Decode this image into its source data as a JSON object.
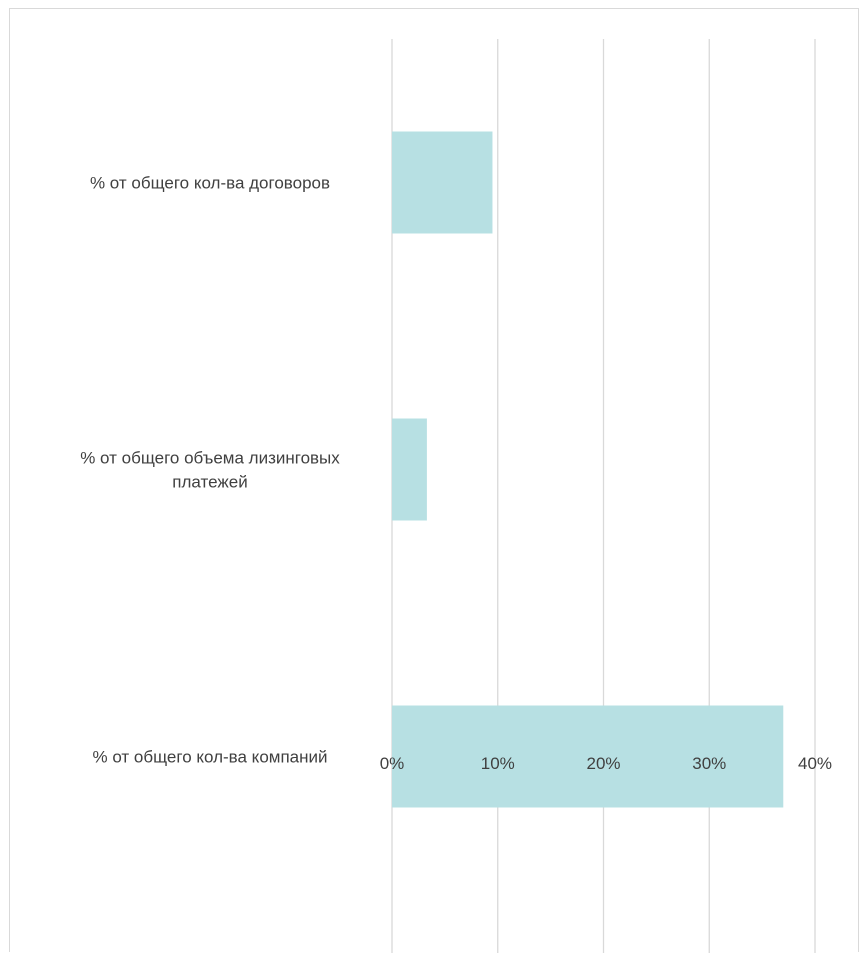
{
  "chart_data": {
    "type": "bar",
    "orientation": "horizontal",
    "categories": [
      "% от общего кол-ва договоров",
      "% от общего объема лизинговых платежей",
      "% от общего кол-ва компаний"
    ],
    "category_label_lines": [
      [
        "% от общего кол-ва договоров"
      ],
      [
        "% от общего объема лизинговых",
        "платежей"
      ],
      [
        "% от общего кол-ва компаний"
      ]
    ],
    "values": [
      9.5,
      3.3,
      37.0
    ],
    "xlim": [
      0,
      40
    ],
    "xticks": [
      0,
      10,
      20,
      30,
      40
    ],
    "xtick_labels": [
      "0%",
      "10%",
      "20%",
      "30%",
      "40%"
    ],
    "grid": "vertical",
    "legend": "none",
    "colors": {
      "bar": "#b7e0e3",
      "grid": "#d9d9d9",
      "text": "#404040"
    }
  }
}
